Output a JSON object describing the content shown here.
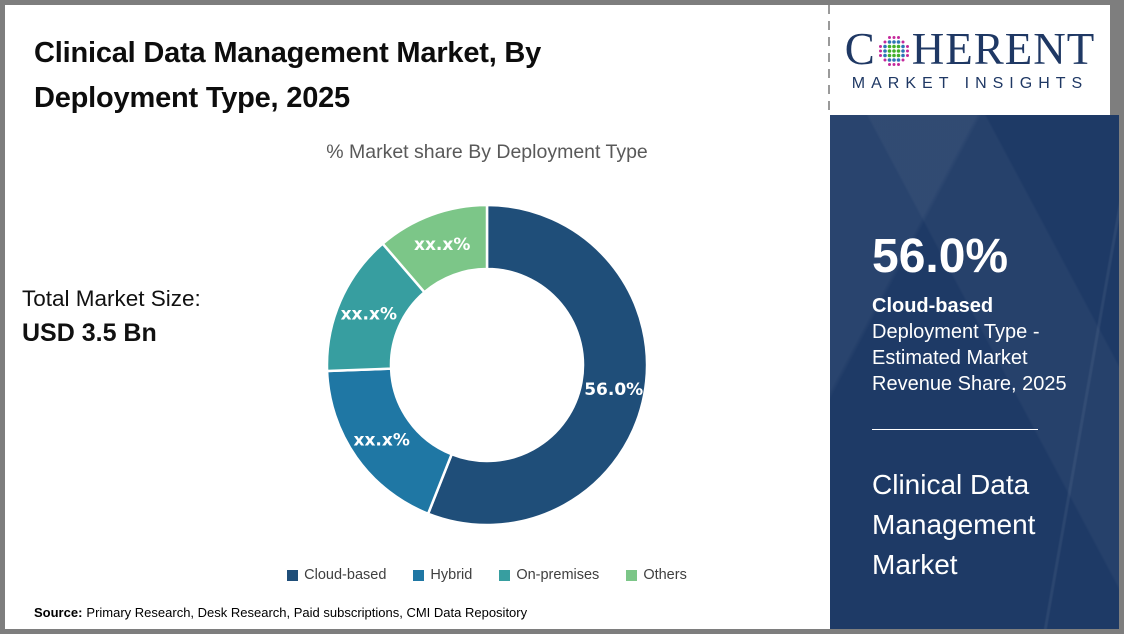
{
  "page": {
    "title": "Clinical Data Management Market, By Deployment Type, 2025",
    "total_market_label": "Total Market Size:",
    "total_market_value": "USD 3.5 Bn",
    "source_label": "Source:",
    "source_text": "Primary Research, Desk Research, Paid subscriptions, CMI Data Repository"
  },
  "chart_data": {
    "type": "pie",
    "subtype": "donut",
    "title": "% Market share By Deployment Type",
    "categories": [
      "Cloud-based",
      "Hybrid",
      "On-premises",
      "Others"
    ],
    "values": [
      56.0,
      18.4,
      14.3,
      11.3
    ],
    "values_note": "Only the 56.0% Cloud-based share is printed on the chart; the other three slices are labeled xx.x% (values estimated from arc angles)",
    "labels": [
      "56.0%",
      "xx.x%",
      "xx.x%",
      "xx.x%"
    ],
    "colors": [
      "#1f4e79",
      "#1f77a4",
      "#379ea0",
      "#7cc688"
    ],
    "start_angle": 0,
    "direction": "clockwise",
    "inner_radius_ratio": 0.6,
    "legend_position": "bottom"
  },
  "sidebar": {
    "logo": {
      "text_c": "C",
      "text_rest": "HERENT",
      "subtitle": "MARKET INSIGHTS",
      "globe_icon": "dotted-globe",
      "dot_colors": [
        "#43b02a",
        "#2e75b6",
        "#c5299b"
      ],
      "navy": "#1f3864"
    },
    "highlight_value": "56.0%",
    "highlight_bold": "Cloud-based",
    "highlight_rest": " Deployment Type - Estimated Market Revenue Share, 2025",
    "panel_title": "Clinical Data Management Market",
    "panel_bg": "#1e3a66"
  }
}
